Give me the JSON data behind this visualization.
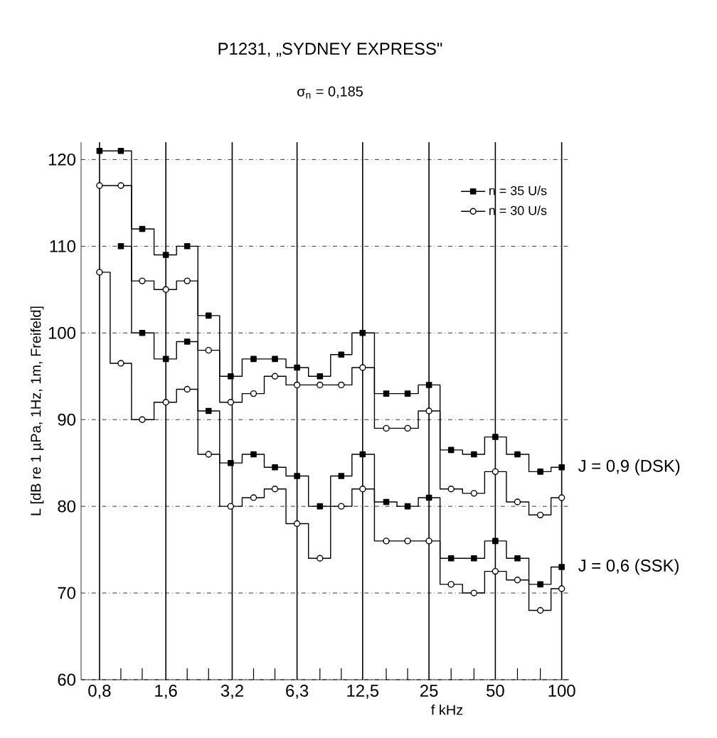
{
  "chart_data": {
    "type": "step",
    "title": "P1231, „SYDNEY EXPRESS\"",
    "subtitle": "σ$_{n}$ = 0,185",
    "xlabel": "f kHz",
    "ylabel": "L [dB re 1 µPa, 1Hz, 1m, Freifeld]",
    "log": "x",
    "grid": true,
    "legend": "top right",
    "x": [
      0.8,
      1.0,
      1.25,
      1.6,
      2.0,
      2.5,
      3.15,
      4.0,
      5.0,
      6.3,
      8.0,
      10.0,
      12.5,
      16.0,
      20.0,
      25.0,
      31.5,
      40.0,
      50.0,
      63.0,
      80.0,
      100.0
    ],
    "xlim": [
      0.66,
      108
    ],
    "ylim": [
      60,
      122
    ],
    "xticks": [
      {
        "value": 0.8,
        "label": "0,8"
      },
      {
        "value": 1.0,
        "label": null
      },
      {
        "value": 1.25,
        "label": null
      },
      {
        "value": 1.6,
        "label": "1,6"
      },
      {
        "value": 2.0,
        "label": null
      },
      {
        "value": 2.5,
        "label": null
      },
      {
        "value": 3.2,
        "label": "3,2"
      },
      {
        "value": 4.0,
        "label": null
      },
      {
        "value": 5.0,
        "label": null
      },
      {
        "value": 6.3,
        "label": "6,3"
      },
      {
        "value": 8.0,
        "label": null
      },
      {
        "value": 10.0,
        "label": null
      },
      {
        "value": 12.5,
        "label": "12,5"
      },
      {
        "value": 16.0,
        "label": null
      },
      {
        "value": 20.0,
        "label": null
      },
      25,
      {
        "value": 31.5,
        "label": null
      },
      {
        "value": 40.0,
        "label": null
      },
      50,
      {
        "value": 63.0,
        "label": null
      },
      {
        "value": 80.0,
        "label": null
      },
      100
    ],
    "yticks": [
      60,
      70,
      80,
      90,
      100,
      110,
      120
    ],
    "series": [
      {
        "name": "n = 35 U/s",
        "color": "#000000",
        "marker": "square",
        "values": [
          121,
          121,
          112,
          109,
          110,
          102,
          95,
          97,
          97,
          96,
          95,
          97.5,
          100,
          93,
          93,
          94,
          86.5,
          86,
          88,
          86,
          84,
          84.5
        ]
      },
      {
        "name": "n = 30 U/s",
        "color": "#000000",
        "marker": "circle",
        "values": [
          117,
          117,
          106,
          105,
          106,
          98,
          92,
          93,
          95,
          94,
          94,
          94,
          96,
          89,
          89,
          91,
          82,
          81.5,
          84,
          80.5,
          79,
          81
        ]
      },
      {
        "color": "#000000",
        "marker": "square",
        "values": [
          null,
          110,
          100,
          97,
          99,
          91,
          85,
          86,
          84.5,
          83.5,
          80,
          83.5,
          86,
          80.5,
          80,
          81,
          74,
          74,
          76,
          74,
          71,
          73
        ]
      },
      {
        "color": "#000000",
        "marker": "circle",
        "values": [
          107,
          96.5,
          90,
          92,
          93.5,
          86,
          80,
          81,
          82,
          78,
          74,
          80,
          82,
          76,
          76,
          76,
          71,
          70,
          72.5,
          71.5,
          68,
          70.5
        ]
      }
    ],
    "annotations": [
      {
        "text": "J = 0,9 (DSK)",
        "x": 100,
        "y": 84.5
      },
      {
        "text": "J = 0,6 (SSK)",
        "x": 100,
        "y": 73
      }
    ]
  }
}
